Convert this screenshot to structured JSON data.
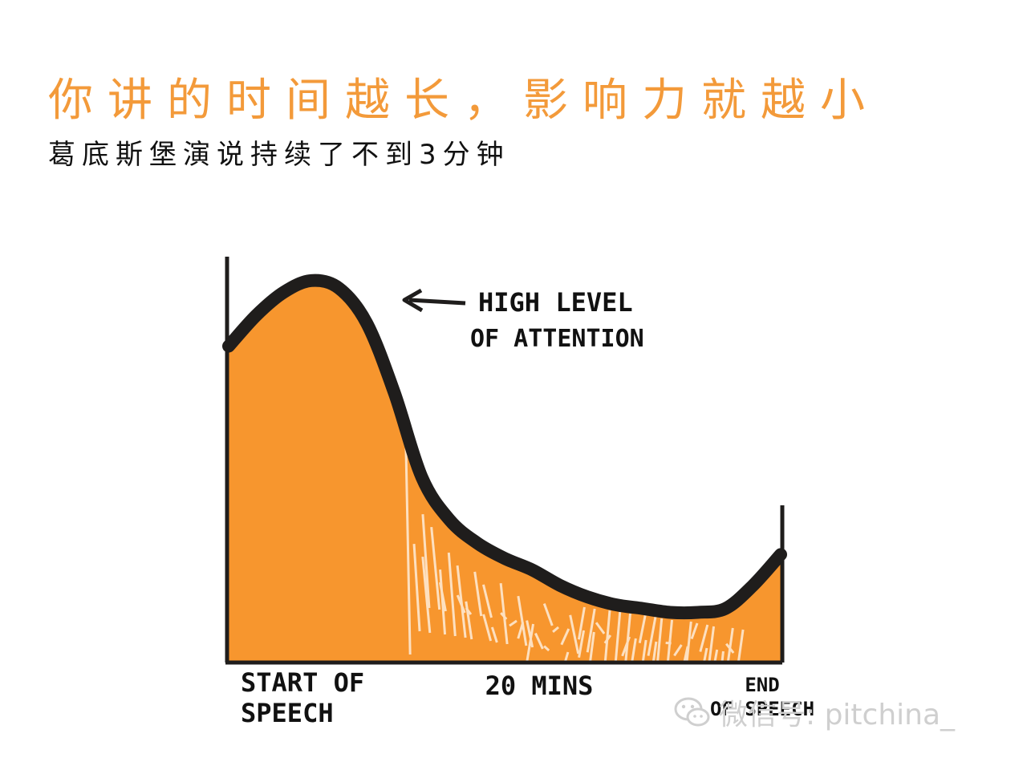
{
  "title": "你讲的时间越长，影响力就越小",
  "subtitle": "葛底斯堡演说持续了不到3分钟",
  "watermark": {
    "icon": "wechat-icon",
    "text": "微信号: pitchina_"
  },
  "colors": {
    "title": "#f39a3a",
    "fill": "#f7962e",
    "curve": "#1f1d1c",
    "text": "#111111"
  },
  "chart_data": {
    "type": "area",
    "x_ticks": [
      "START OF SPEECH",
      "20 MINS",
      "END OF SPEECH"
    ],
    "annotation": "HIGH LEVEL OF ATTENTION",
    "x": [
      0,
      0.05,
      0.1,
      0.15,
      0.2,
      0.25,
      0.3,
      0.35,
      0.4,
      0.45,
      0.5,
      0.55,
      0.6,
      0.65,
      0.7,
      0.75,
      0.8,
      0.85,
      0.9,
      0.95,
      1.0
    ],
    "values": [
      0.82,
      0.9,
      0.96,
      0.99,
      0.97,
      0.88,
      0.7,
      0.48,
      0.37,
      0.31,
      0.27,
      0.24,
      0.2,
      0.17,
      0.15,
      0.14,
      0.13,
      0.13,
      0.14,
      0.2,
      0.28
    ],
    "ylim": [
      0,
      1
    ],
    "xlim": [
      0,
      1
    ],
    "grid": false
  }
}
